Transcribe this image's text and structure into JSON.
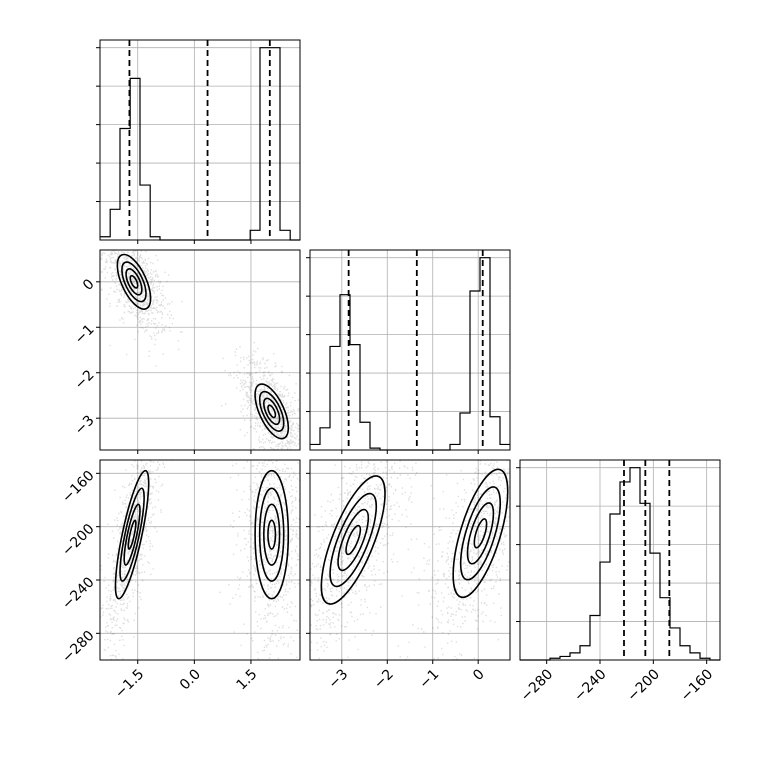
{
  "chart_data": {
    "type": "corner",
    "grid": true,
    "parameters": [
      {
        "label": "",
        "range": [
          -2.5,
          2.8
        ],
        "ticks": [
          -1.5,
          0.0,
          1.5
        ],
        "tick_labels": [
          "−1.5",
          "0.0",
          "1.5"
        ]
      },
      {
        "label": "",
        "range": [
          -3.7,
          0.7
        ],
        "ticks": [
          -3,
          -2,
          -1,
          0
        ],
        "tick_labels": [
          "−3",
          "−2",
          "−1",
          "0"
        ]
      },
      {
        "label": "",
        "range": [
          -300,
          -150
        ],
        "ticks": [
          -280,
          -240,
          -200,
          -160
        ],
        "tick_labels": [
          "−280",
          "−240",
          "−200",
          "−160"
        ]
      }
    ],
    "histograms": [
      {
        "param": 0,
        "bin_edges": [
          -2.5,
          -2.23,
          -1.97,
          -1.7,
          -1.44,
          -1.17,
          -0.91,
          -0.64,
          -0.38,
          -0.11,
          0.15,
          0.42,
          0.68,
          0.95,
          1.21,
          1.48,
          1.74,
          2.01,
          2.27,
          2.54,
          2.8
        ],
        "counts": [
          0.02,
          0.19,
          0.69,
          1.0,
          0.34,
          0.02,
          0,
          0,
          0,
          0,
          0,
          0,
          0,
          0,
          0,
          0.06,
          1.19,
          1.19,
          0.06,
          0
        ],
        "quantiles": [
          -1.72,
          0.35,
          2.0
        ]
      },
      {
        "param": 1,
        "bin_edges": [
          -3.7,
          -3.48,
          -3.26,
          -3.04,
          -2.82,
          -2.6,
          -2.38,
          -2.16,
          -1.94,
          -1.72,
          -1.5,
          -1.28,
          -1.06,
          -0.84,
          -0.62,
          -0.4,
          -0.18,
          0.04,
          0.26,
          0.48,
          0.7
        ],
        "counts": [
          0.03,
          0.12,
          0.56,
          0.84,
          0.57,
          0.15,
          0.01,
          0,
          0,
          0,
          0,
          0,
          0,
          0,
          0.03,
          0.2,
          0.86,
          1.04,
          0.18,
          0.03
        ],
        "quantiles": [
          -2.85,
          -1.35,
          0.1
        ]
      },
      {
        "param": 2,
        "bin_edges": [
          -300,
          -292.5,
          -285,
          -277.5,
          -270,
          -262.5,
          -255,
          -247.5,
          -240,
          -232.5,
          -225,
          -217.5,
          -210,
          -202.5,
          -195,
          -187.5,
          -180,
          -172.5,
          -165,
          -157.5,
          -150
        ],
        "counts": [
          0,
          0,
          0,
          0.01,
          0.02,
          0.04,
          0.08,
          0.25,
          0.55,
          0.82,
          1.0,
          1.08,
          0.88,
          0.6,
          0.35,
          0.18,
          0.08,
          0.04,
          0.01,
          0
        ],
        "quantiles": [
          -222,
          -206,
          -188
        ]
      }
    ],
    "joint_panels": [
      {
        "x_param": 0,
        "y_param": 1,
        "modes": [
          {
            "cx": -1.6,
            "cy": 0.0,
            "sx": 0.22,
            "sy": 0.3,
            "rho": -0.6,
            "weight": 0.5
          },
          {
            "cx": 2.05,
            "cy": -2.85,
            "sx": 0.22,
            "sy": 0.3,
            "rho": -0.6,
            "weight": 0.5
          }
        ]
      },
      {
        "x_param": 0,
        "y_param": 2,
        "modes": [
          {
            "cx": -1.65,
            "cy": -206,
            "sx": 0.22,
            "sy": 24,
            "rho": 0.8,
            "weight": 0.5
          },
          {
            "cx": 2.05,
            "cy": -206,
            "sx": 0.22,
            "sy": 24,
            "rho": 0.0,
            "weight": 0.5
          }
        ]
      },
      {
        "x_param": 1,
        "y_param": 2,
        "modes": [
          {
            "cx": -2.75,
            "cy": -210,
            "sx": 0.35,
            "sy": 24,
            "rho": 0.72,
            "weight": 0.5
          },
          {
            "cx": 0.05,
            "cy": -205,
            "sx": 0.3,
            "sy": 24,
            "rho": 0.65,
            "weight": 0.5
          }
        ]
      }
    ]
  }
}
